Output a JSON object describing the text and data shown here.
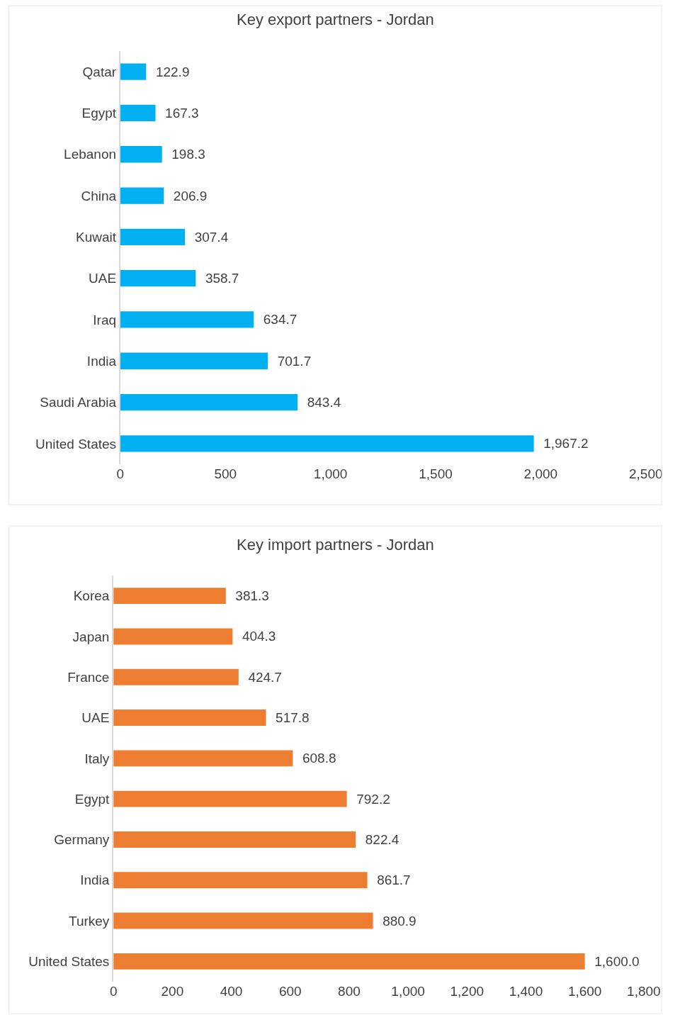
{
  "chart_data": [
    {
      "type": "bar",
      "orientation": "horizontal",
      "title": "Key export partners - Jordan",
      "categories": [
        "Qatar",
        "Egypt",
        "Lebanon",
        "China",
        "Kuwait",
        "UAE",
        "Iraq",
        "India",
        "Saudi Arabia",
        "United States"
      ],
      "values": [
        122.9,
        167.3,
        198.3,
        206.9,
        307.4,
        358.7,
        634.7,
        701.7,
        843.4,
        1967.2
      ],
      "value_labels": [
        "122.9",
        "167.3",
        "198.3",
        "206.9",
        "307.4",
        "358.7",
        "634.7",
        "701.7",
        "843.4",
        "1,967.2"
      ],
      "color": "#00b0f0",
      "xlim": [
        0,
        2500
      ],
      "xticks": [
        0,
        500,
        {
          "value": 1000,
          "label": "1,000"
        },
        {
          "value": 1500,
          "label": "1,500"
        },
        {
          "value": 2000,
          "label": "2,000"
        },
        {
          "value": 2500,
          "label": "2,500"
        }
      ]
    },
    {
      "type": "bar",
      "orientation": "horizontal",
      "title": "Key import partners - Jordan",
      "categories": [
        "Korea",
        "Japan",
        "France",
        "UAE",
        "Italy",
        "Egypt",
        "Germany",
        "India",
        "Turkey",
        "United States"
      ],
      "values": [
        381.3,
        404.3,
        424.7,
        517.8,
        608.8,
        792.2,
        822.4,
        861.7,
        880.9,
        1600.0
      ],
      "value_labels": [
        "381.3",
        "404.3",
        "424.7",
        "517.8",
        "608.8",
        "792.2",
        "822.4",
        "861.7",
        "880.9",
        "1,600.0"
      ],
      "color": "#ed7d31",
      "xlim": [
        0,
        1800
      ],
      "xticks": [
        0,
        200,
        400,
        600,
        800,
        {
          "value": 1000,
          "label": "1,000"
        },
        {
          "value": 1200,
          "label": "1,200"
        },
        {
          "value": 1400,
          "label": "1,400"
        },
        {
          "value": 1600,
          "label": "1,600"
        },
        {
          "value": 1800,
          "label": "1,800"
        }
      ]
    }
  ]
}
